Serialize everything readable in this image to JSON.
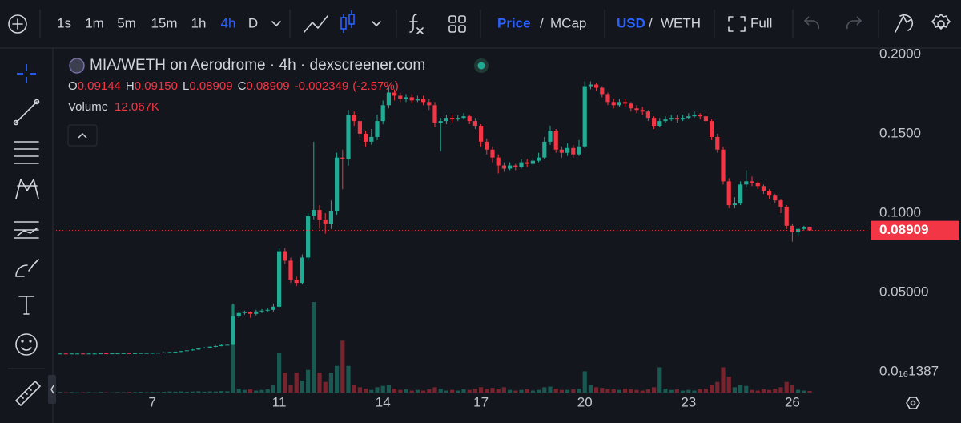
{
  "toolbar": {
    "intervals": [
      "1s",
      "1m",
      "5m",
      "15m",
      "1h",
      "4h",
      "D"
    ],
    "price": "Price",
    "sep1": "/",
    "mcap": "MCap",
    "usd": "USD",
    "sep2": "/",
    "weth": "WETH",
    "full": "Full"
  },
  "chart_data": {
    "type": "candlestick",
    "title": "MIA/WETH on Aerodrome · 4h · dexscreener.com",
    "legend": {
      "o": "O",
      "h": "H",
      "l": "L",
      "c": "C",
      "high_label": "0.09150",
      "change": "-0.002349",
      "change_pct": "(-2.57%)",
      "volume": "Volume",
      "volume_label": "12.067K"
    },
    "categories": [
      null,
      null,
      null,
      null,
      null,
      null,
      null,
      null,
      null,
      null,
      null,
      null,
      null,
      null,
      null,
      null,
      "7",
      null,
      null,
      null,
      null,
      null,
      null,
      null,
      null,
      null,
      null,
      null,
      null,
      null,
      null,
      null,
      null,
      null,
      null,
      null,
      null,
      null,
      "11",
      null,
      null,
      null,
      null,
      null,
      null,
      null,
      null,
      null,
      null,
      null,
      null,
      null,
      null,
      null,
      null,
      null,
      "14",
      null,
      null,
      null,
      null,
      null,
      null,
      null,
      null,
      null,
      null,
      null,
      null,
      null,
      null,
      null,
      null,
      "17",
      null,
      null,
      null,
      null,
      null,
      null,
      null,
      null,
      null,
      null,
      null,
      null,
      null,
      null,
      null,
      null,
      null,
      "20",
      null,
      null,
      null,
      null,
      null,
      null,
      null,
      null,
      null,
      null,
      null,
      null,
      null,
      null,
      null,
      null,
      null,
      "23",
      null,
      null,
      null,
      null,
      null,
      null,
      null,
      null,
      null,
      null,
      null,
      null,
      null,
      null,
      null,
      null,
      null,
      "26",
      null,
      null,
      null
    ],
    "open": [
      0.0115,
      0.0115,
      0.0114,
      0.0115,
      0.0115,
      0.0114,
      0.0115,
      0.0115,
      0.0116,
      0.0115,
      0.0116,
      0.0116,
      0.0117,
      0.0116,
      0.0117,
      0.0118,
      0.0118,
      0.0119,
      0.012,
      0.0122,
      0.0124,
      0.0126,
      0.013,
      0.0135,
      0.014,
      0.0148,
      0.0152,
      0.0158,
      0.0162,
      0.0168,
      0.017,
      0.035,
      0.037,
      0.0375,
      0.0365,
      0.038,
      0.0385,
      0.039,
      0.041,
      0.076,
      0.07,
      0.058,
      0.056,
      0.072,
      0.098,
      0.102,
      0.096,
      0.093,
      0.101,
      0.135,
      0.134,
      0.162,
      0.158,
      0.15,
      0.145,
      0.148,
      0.158,
      0.168,
      0.176,
      0.174,
      0.172,
      0.173,
      0.171,
      0.172,
      0.17,
      0.168,
      0.157,
      0.158,
      0.16,
      0.159,
      0.16,
      0.161,
      0.158,
      0.155,
      0.145,
      0.14,
      0.135,
      0.13,
      0.128,
      0.13,
      0.129,
      0.132,
      0.131,
      0.133,
      0.135,
      0.145,
      0.152,
      0.14,
      0.138,
      0.141,
      0.137,
      0.142,
      0.18,
      0.181,
      0.179,
      0.175,
      0.17,
      0.168,
      0.17,
      0.169,
      0.166,
      0.165,
      0.164,
      0.16,
      0.155,
      0.158,
      0.159,
      0.16,
      0.159,
      0.16,
      0.161,
      0.162,
      0.161,
      0.158,
      0.148,
      0.14,
      0.12,
      0.105,
      0.106,
      0.118,
      0.12,
      0.119,
      0.117,
      0.114,
      0.111,
      0.108,
      0.104,
      0.092,
      0.088,
      0.09,
      0.09144
    ],
    "high": [
      0.0117,
      0.0116,
      0.0117,
      0.0116,
      0.0116,
      0.0116,
      0.0117,
      0.0117,
      0.0117,
      0.0117,
      0.0118,
      0.0118,
      0.0118,
      0.0119,
      0.012,
      0.012,
      0.0121,
      0.0122,
      0.0124,
      0.0126,
      0.0128,
      0.0132,
      0.0137,
      0.0143,
      0.015,
      0.0156,
      0.016,
      0.0165,
      0.0172,
      0.0175,
      0.043,
      0.038,
      0.0385,
      0.038,
      0.039,
      0.0395,
      0.04,
      0.043,
      0.078,
      0.078,
      0.072,
      0.06,
      0.074,
      0.1,
      0.145,
      0.105,
      0.1,
      0.108,
      0.138,
      0.14,
      0.165,
      0.164,
      0.16,
      0.152,
      0.153,
      0.162,
      0.171,
      0.18,
      0.178,
      0.176,
      0.175,
      0.175,
      0.174,
      0.174,
      0.172,
      0.17,
      0.16,
      0.162,
      0.162,
      0.162,
      0.163,
      0.162,
      0.16,
      0.156,
      0.147,
      0.142,
      0.137,
      0.132,
      0.132,
      0.131,
      0.134,
      0.134,
      0.135,
      0.138,
      0.148,
      0.155,
      0.153,
      0.142,
      0.144,
      0.143,
      0.146,
      0.183,
      0.183,
      0.182,
      0.18,
      0.176,
      0.172,
      0.172,
      0.172,
      0.17,
      0.168,
      0.167,
      0.165,
      0.161,
      0.16,
      0.161,
      0.162,
      0.162,
      0.162,
      0.163,
      0.164,
      0.163,
      0.162,
      0.159,
      0.15,
      0.142,
      0.122,
      0.11,
      0.12,
      0.127,
      0.123,
      0.12,
      0.118,
      0.115,
      0.112,
      0.109,
      0.105,
      0.093,
      0.091,
      0.092,
      0.0915
    ],
    "low": [
      0.0113,
      0.0112,
      0.0113,
      0.0114,
      0.0113,
      0.0113,
      0.0114,
      0.0114,
      0.0114,
      0.0114,
      0.0115,
      0.0115,
      0.0115,
      0.0115,
      0.0116,
      0.0117,
      0.0117,
      0.0118,
      0.0119,
      0.0121,
      0.0123,
      0.0125,
      0.0129,
      0.0133,
      0.0138,
      0.0146,
      0.015,
      0.0155,
      0.016,
      0.0165,
      0.0168,
      0.034,
      0.036,
      0.034,
      0.0355,
      0.037,
      0.0375,
      0.038,
      0.04,
      0.068,
      0.056,
      0.054,
      0.055,
      0.07,
      0.096,
      0.09,
      0.087,
      0.09,
      0.099,
      0.115,
      0.13,
      0.155,
      0.146,
      0.142,
      0.143,
      0.146,
      0.156,
      0.166,
      0.171,
      0.17,
      0.17,
      0.169,
      0.17,
      0.168,
      0.165,
      0.154,
      0.139,
      0.156,
      0.157,
      0.158,
      0.159,
      0.156,
      0.153,
      0.142,
      0.137,
      0.132,
      0.125,
      0.126,
      0.127,
      0.127,
      0.128,
      0.129,
      0.13,
      0.132,
      0.134,
      0.143,
      0.138,
      0.135,
      0.136,
      0.135,
      0.136,
      0.141,
      0.178,
      0.177,
      0.173,
      0.168,
      0.166,
      0.167,
      0.167,
      0.164,
      0.163,
      0.162,
      0.158,
      0.153,
      0.154,
      0.157,
      0.158,
      0.157,
      0.158,
      0.159,
      0.16,
      0.159,
      0.156,
      0.146,
      0.138,
      0.118,
      0.103,
      0.103,
      0.105,
      0.116,
      0.117,
      0.115,
      0.112,
      0.109,
      0.106,
      0.1,
      0.09,
      0.082,
      0.086,
      0.089,
      0.08909
    ],
    "close": [
      0.0115,
      0.0114,
      0.0115,
      0.0115,
      0.0114,
      0.0115,
      0.0115,
      0.0116,
      0.0115,
      0.0116,
      0.0116,
      0.0117,
      0.0116,
      0.0117,
      0.0118,
      0.0118,
      0.0119,
      0.012,
      0.0122,
      0.0124,
      0.0126,
      0.013,
      0.0135,
      0.014,
      0.0148,
      0.0152,
      0.0158,
      0.0162,
      0.0168,
      0.017,
      0.035,
      0.037,
      0.0375,
      0.0365,
      0.038,
      0.0385,
      0.039,
      0.041,
      0.076,
      0.07,
      0.058,
      0.056,
      0.072,
      0.098,
      0.102,
      0.096,
      0.093,
      0.101,
      0.135,
      0.134,
      0.162,
      0.158,
      0.15,
      0.145,
      0.148,
      0.158,
      0.168,
      0.176,
      0.174,
      0.172,
      0.173,
      0.171,
      0.172,
      0.17,
      0.168,
      0.157,
      0.158,
      0.16,
      0.159,
      0.16,
      0.161,
      0.158,
      0.155,
      0.145,
      0.14,
      0.135,
      0.13,
      0.128,
      0.13,
      0.129,
      0.132,
      0.131,
      0.133,
      0.135,
      0.145,
      0.152,
      0.14,
      0.138,
      0.141,
      0.137,
      0.142,
      0.18,
      0.181,
      0.179,
      0.175,
      0.17,
      0.168,
      0.17,
      0.169,
      0.166,
      0.165,
      0.164,
      0.16,
      0.155,
      0.158,
      0.159,
      0.16,
      0.159,
      0.16,
      0.161,
      0.162,
      0.161,
      0.158,
      0.148,
      0.14,
      0.12,
      0.105,
      0.106,
      0.118,
      0.12,
      0.119,
      0.117,
      0.114,
      0.111,
      0.108,
      0.104,
      0.092,
      0.088,
      0.09,
      0.0914,
      0.08909
    ],
    "volume": [
      5000,
      3000,
      4000,
      2000,
      3000,
      4000,
      2000,
      5000,
      3000,
      2000,
      4000,
      3000,
      5000,
      4000,
      6000,
      3000,
      5000,
      4000,
      6000,
      8000,
      7000,
      9000,
      6000,
      8000,
      10000,
      7000,
      9000,
      8000,
      12000,
      10000,
      660000,
      30000,
      20000,
      25000,
      15000,
      20000,
      25000,
      60000,
      300000,
      150000,
      60000,
      150000,
      90000,
      170000,
      680000,
      150000,
      80000,
      150000,
      200000,
      390000,
      200000,
      60000,
      40000,
      30000,
      20000,
      40000,
      50000,
      60000,
      30000,
      20000,
      25000,
      15000,
      20000,
      15000,
      25000,
      40000,
      30000,
      15000,
      20000,
      15000,
      25000,
      20000,
      30000,
      40000,
      30000,
      35000,
      30000,
      40000,
      20000,
      15000,
      20000,
      25000,
      15000,
      20000,
      40000,
      45000,
      30000,
      20000,
      20000,
      25000,
      30000,
      160000,
      60000,
      40000,
      35000,
      30000,
      25000,
      20000,
      30000,
      25000,
      20000,
      15000,
      25000,
      40000,
      190000,
      30000,
      20000,
      25000,
      15000,
      20000,
      15000,
      25000,
      30000,
      60000,
      80000,
      190000,
      120000,
      40000,
      60000,
      50000,
      20000,
      15000,
      25000,
      20000,
      30000,
      40000,
      80000,
      60000,
      20000,
      15000,
      12067
    ],
    "up_color": "#22ab94",
    "down_color": "#f23645",
    "ylim": [
      -0.0131,
      0.204
    ],
    "yticks": [
      {
        "value": 1.387e-17,
        "label": "0.0₁₆1387"
      },
      {
        "value": 0.05,
        "label": "0.05000"
      },
      {
        "value": 0.1,
        "label": "0.1000"
      },
      {
        "value": 0.15,
        "label": "0.1500"
      },
      {
        "value": 0.2,
        "label": "0.2000"
      }
    ],
    "grid": false
  }
}
